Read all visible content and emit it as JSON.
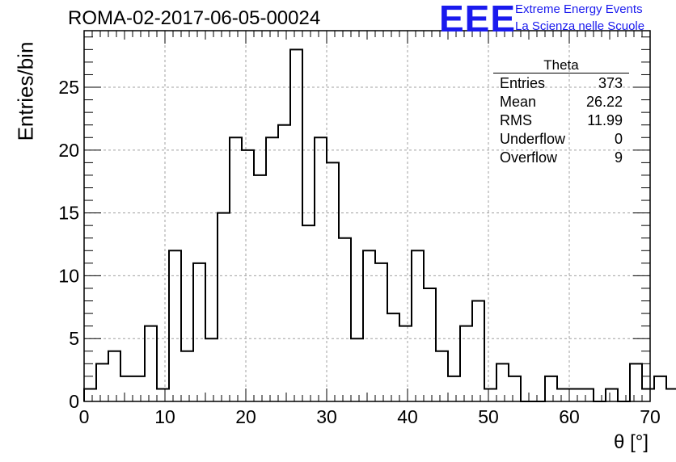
{
  "title": "ROMA-02-2017-06-05-00024",
  "logo": {
    "mark": "EEE",
    "line1": "Extreme Energy Events",
    "line2": "La Scienza nelle Scuole",
    "color": "#1a1aee"
  },
  "stats_box": {
    "title": "Theta",
    "rows": [
      {
        "label": "Entries",
        "value": "373"
      },
      {
        "label": "Mean",
        "value": "26.22"
      },
      {
        "label": "RMS",
        "value": "11.99"
      },
      {
        "label": "Underflow",
        "value": "0"
      },
      {
        "label": "Overflow",
        "value": "9"
      }
    ]
  },
  "chart_data": {
    "type": "bar",
    "histogram": true,
    "xlabel": "θ [°]",
    "ylabel": "Entries/bin",
    "xlim": [
      0,
      70
    ],
    "ylim": [
      0,
      29.5
    ],
    "xticks": [
      0,
      10,
      20,
      30,
      40,
      50,
      60,
      70
    ],
    "yticks": [
      0,
      5,
      10,
      15,
      20,
      25
    ],
    "grid": true,
    "bin_edges_start": 0,
    "bin_width": 1.5,
    "values": [
      1,
      3,
      4,
      2,
      2,
      6,
      1,
      12,
      4,
      11,
      5,
      15,
      21,
      20,
      18,
      21,
      22,
      28,
      14,
      21,
      19,
      13,
      5,
      12,
      11,
      7,
      6,
      12,
      9,
      4,
      2,
      6,
      8,
      1,
      3,
      2,
      0,
      0,
      2,
      1,
      1,
      1,
      0,
      1,
      0,
      3,
      1,
      2,
      1
    ]
  }
}
